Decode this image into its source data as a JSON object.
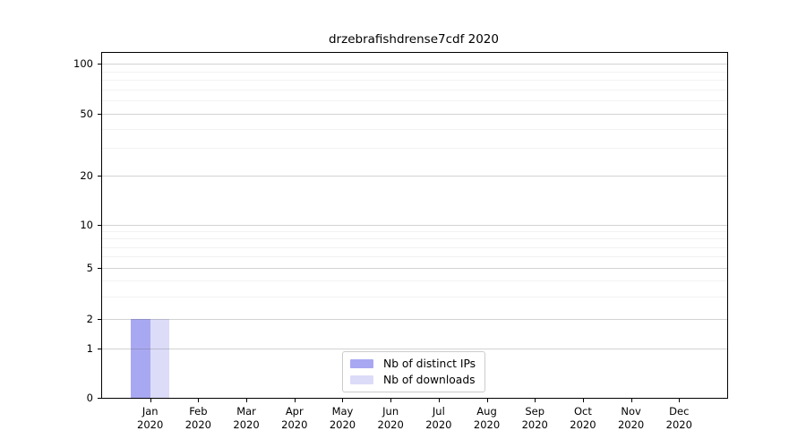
{
  "chart_data": {
    "type": "bar",
    "title": "drzebrafishdrense7cdf 2020",
    "categories": [
      "Jan 2020",
      "Feb 2020",
      "Mar 2020",
      "Apr 2020",
      "May 2020",
      "Jun 2020",
      "Jul 2020",
      "Aug 2020",
      "Sep 2020",
      "Oct 2020",
      "Nov 2020",
      "Dec 2020"
    ],
    "x_tick_month": [
      "Jan",
      "Feb",
      "Mar",
      "Apr",
      "May",
      "Jun",
      "Jul",
      "Aug",
      "Sep",
      "Oct",
      "Nov",
      "Dec"
    ],
    "x_tick_year": "2020",
    "series": [
      {
        "name": "Nb of distinct IPs",
        "color": "#a8a8f2",
        "values": [
          2,
          0,
          0,
          0,
          0,
          0,
          0,
          0,
          0,
          0,
          0,
          0
        ]
      },
      {
        "name": "Nb of downloads",
        "color": "#dcdcf8",
        "values": [
          2,
          0,
          0,
          0,
          0,
          0,
          0,
          0,
          0,
          0,
          0,
          0
        ]
      }
    ],
    "y_axis": {
      "scale": "symlog",
      "major_ticks": [
        0,
        1,
        2,
        5,
        10,
        20,
        50,
        100
      ],
      "minor_gridlines": [
        3,
        4,
        6,
        7,
        8,
        9,
        30,
        40,
        60,
        70,
        80,
        90
      ],
      "ylim": [
        0,
        117
      ]
    },
    "grid": "horizontal",
    "legend": {
      "position": "bottom-center",
      "border_color": "#cccccc"
    },
    "colors": {
      "spine": "#000000",
      "major_grid": "#d3d3d3",
      "minor_grid": "#ececec",
      "background": "#ffffff"
    }
  }
}
